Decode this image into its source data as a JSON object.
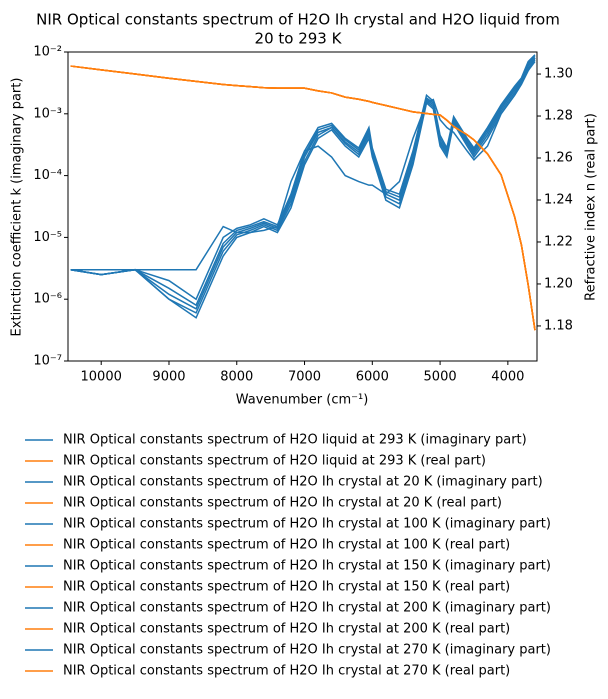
{
  "chart_data": {
    "type": "line",
    "title": "NIR Optical constants spectrum of H2O Ih crystal and  H2O liquid from",
    "subtitle": "20 to 293 K",
    "x_label": "Wavenumber (cm⁻¹)",
    "y_label": "Extinction coefficient k (imaginary part)",
    "y2_label": "Refractive index n (real part)",
    "xlim": [
      10490,
      3570
    ],
    "xticks": [
      10000,
      9000,
      8000,
      7000,
      6000,
      5000,
      4000
    ],
    "ylim": [
      1e-07,
      0.01
    ],
    "yscale": "log",
    "yticks": [
      {
        "value": 1e-07,
        "label": "10⁻⁷"
      },
      {
        "value": 1e-06,
        "label": "10⁻⁶"
      },
      {
        "value": 1e-05,
        "label": "10⁻⁵"
      },
      {
        "value": 0.0001,
        "label": "10⁻⁴"
      },
      {
        "value": 0.001,
        "label": "10⁻³"
      },
      {
        "value": 0.01,
        "label": "10⁻²"
      }
    ],
    "y2lim": [
      1.1633,
      1.3105
    ],
    "y2ticks": [
      {
        "value": 1.18,
        "label": "1.18"
      },
      {
        "value": 1.2,
        "label": "1.20"
      },
      {
        "value": 1.22,
        "label": "1.22"
      },
      {
        "value": 1.24,
        "label": "1.24"
      },
      {
        "value": 1.26,
        "label": "1.26"
      },
      {
        "value": 1.28,
        "label": "1.28"
      },
      {
        "value": 1.3,
        "label": "1.30"
      }
    ],
    "legend": "below",
    "x": [
      10450,
      10000,
      9500,
      9000,
      8600,
      8200,
      8000,
      7800,
      7600,
      7400,
      7200,
      7000,
      6800,
      6600,
      6400,
      6200,
      6050,
      6000,
      5800,
      5600,
      5400,
      5200,
      5100,
      5000,
      4900,
      4800,
      4600,
      4500,
      4300,
      4100,
      3900,
      3800,
      3700,
      3600
    ],
    "series": [
      {
        "name": "NIR Optical constants spectrum of H2O liquid at 293 K (imaginary part)",
        "color": "#1f77b4",
        "values": [
          3e-06,
          3e-06,
          3e-06,
          3e-06,
          3e-06,
          1.5e-05,
          1.2e-05,
          1.2e-05,
          1.3e-05,
          1.5e-05,
          8e-05,
          0.00025,
          0.0003,
          0.0002,
          0.0001,
          8e-05,
          7e-05,
          7e-05,
          5e-05,
          8e-05,
          0.0004,
          0.0015,
          0.0017,
          0.0008,
          0.0006,
          0.0005,
          0.00025,
          0.00018,
          0.0003,
          0.001,
          0.002,
          0.003,
          0.005,
          0.008
        ]
      },
      {
        "name": "NIR Optical constants spectrum of H2O liquid at 293 K (real part)",
        "color": "#ff7f0e",
        "axis": "y2",
        "values": [
          1.3038,
          1.302,
          1.3,
          1.298,
          1.2965,
          1.295,
          1.2945,
          1.294,
          1.2935,
          1.2933,
          1.2933,
          1.2933,
          1.292,
          1.291,
          1.289,
          1.288,
          1.287,
          1.2865,
          1.285,
          1.2835,
          1.282,
          1.2812,
          1.2808,
          1.2805,
          1.278,
          1.275,
          1.271,
          1.2686,
          1.262,
          1.252,
          1.232,
          1.2186,
          1.1995,
          1.178
        ]
      },
      {
        "name": "NIR Optical constants spectrum of H2O Ih crystal at 20 K (imaginary part)",
        "color": "#1f77b4",
        "values": [
          3e-06,
          2.5e-06,
          3e-06,
          1e-06,
          5e-07,
          5e-06,
          1e-05,
          1.2e-05,
          1.5e-05,
          1.2e-05,
          3e-05,
          0.00015,
          0.0004,
          0.00055,
          0.0003,
          0.0002,
          0.0004,
          0.0002,
          4e-05,
          3e-05,
          0.00015,
          0.0015,
          0.0012,
          0.0003,
          0.0002,
          0.0007,
          0.0003,
          0.0002,
          0.0004,
          0.001,
          0.002,
          0.003,
          0.005,
          0.007
        ]
      },
      {
        "name": "NIR Optical constants spectrum of H2O Ih crystal at 20 K (real part)",
        "color": "#ff7f0e",
        "axis": "y2",
        "values": [
          1.3038,
          1.302,
          1.3,
          1.298,
          1.2965,
          1.295,
          1.2945,
          1.294,
          1.2935,
          1.2933,
          1.2933,
          1.2933,
          1.292,
          1.291,
          1.289,
          1.288,
          1.287,
          1.2865,
          1.285,
          1.2835,
          1.282,
          1.2812,
          1.2808,
          1.2805,
          1.278,
          1.275,
          1.271,
          1.2686,
          1.262,
          1.252,
          1.232,
          1.2186,
          1.1995,
          1.178
        ]
      },
      {
        "name": "NIR Optical constants spectrum of H2O Ih crystal at 100 K (imaginary part)",
        "color": "#1f77b4",
        "values": [
          3e-06,
          2.5e-06,
          3e-06,
          1e-06,
          6e-07,
          6e-06,
          1.1e-05,
          1.3e-05,
          1.6e-05,
          1.3e-05,
          3.5e-05,
          0.00017,
          0.00045,
          0.0006,
          0.00033,
          0.00022,
          0.00045,
          0.00022,
          4.5e-05,
          3.5e-05,
          0.00017,
          0.0016,
          0.0013,
          0.00033,
          0.00022,
          0.00075,
          0.00033,
          0.00022,
          0.00045,
          0.0011,
          0.0022,
          0.0032,
          0.0055,
          0.0075
        ]
      },
      {
        "name": "NIR Optical constants spectrum of H2O Ih crystal at 100 K (real part)",
        "color": "#ff7f0e",
        "axis": "y2",
        "values": [
          1.3038,
          1.302,
          1.3,
          1.298,
          1.2965,
          1.295,
          1.2945,
          1.294,
          1.2935,
          1.2933,
          1.2933,
          1.2933,
          1.292,
          1.291,
          1.289,
          1.288,
          1.287,
          1.2865,
          1.285,
          1.2835,
          1.282,
          1.2812,
          1.2808,
          1.2805,
          1.278,
          1.275,
          1.271,
          1.2686,
          1.262,
          1.252,
          1.232,
          1.2186,
          1.1995,
          1.178
        ]
      },
      {
        "name": "NIR Optical constants spectrum of H2O Ih crystal at 150 K (imaginary part)",
        "color": "#1f77b4",
        "values": [
          3e-06,
          2.5e-06,
          3e-06,
          1.2e-06,
          7e-07,
          7e-06,
          1.2e-05,
          1.4e-05,
          1.7e-05,
          1.4e-05,
          4e-05,
          0.0002,
          0.0005,
          0.0006,
          0.00035,
          0.00024,
          0.0005,
          0.00024,
          5e-05,
          4e-05,
          0.0002,
          0.0017,
          0.0014,
          0.00036,
          0.00024,
          0.0008,
          0.00035,
          0.00024,
          0.0005,
          0.0012,
          0.0024,
          0.0034,
          0.006,
          0.008
        ]
      },
      {
        "name": "NIR Optical constants spectrum of H2O Ih crystal at 150 K (real part)",
        "color": "#ff7f0e",
        "axis": "y2",
        "values": [
          1.3038,
          1.302,
          1.3,
          1.298,
          1.2965,
          1.295,
          1.2945,
          1.294,
          1.2935,
          1.2933,
          1.2933,
          1.2933,
          1.292,
          1.291,
          1.289,
          1.288,
          1.287,
          1.2865,
          1.285,
          1.2835,
          1.282,
          1.2812,
          1.2808,
          1.2805,
          1.278,
          1.275,
          1.271,
          1.2686,
          1.262,
          1.252,
          1.232,
          1.2186,
          1.1995,
          1.178
        ]
      },
      {
        "name": "NIR Optical constants spectrum of H2O Ih crystal at 200 K (imaginary part)",
        "color": "#1f77b4",
        "values": [
          3e-06,
          2.5e-06,
          3e-06,
          1.5e-06,
          8e-07,
          8e-06,
          1.3e-05,
          1.5e-05,
          1.8e-05,
          1.5e-05,
          4.5e-05,
          0.00022,
          0.00055,
          0.00065,
          0.00038,
          0.00026,
          0.00055,
          0.00026,
          5.5e-05,
          4.5e-05,
          0.00022,
          0.0018,
          0.0015,
          0.0004,
          0.00026,
          0.00085,
          0.00038,
          0.00026,
          0.00055,
          0.0013,
          0.0026,
          0.0036,
          0.0065,
          0.0085
        ]
      },
      {
        "name": "NIR Optical constants spectrum of H2O Ih crystal at 200 K (real part)",
        "color": "#ff7f0e",
        "axis": "y2",
        "values": [
          1.3038,
          1.302,
          1.3,
          1.298,
          1.2965,
          1.295,
          1.2945,
          1.294,
          1.2935,
          1.2933,
          1.2933,
          1.2933,
          1.292,
          1.291,
          1.289,
          1.288,
          1.287,
          1.2865,
          1.285,
          1.2835,
          1.282,
          1.2812,
          1.2808,
          1.2805,
          1.278,
          1.275,
          1.271,
          1.2686,
          1.262,
          1.252,
          1.232,
          1.2186,
          1.1995,
          1.178
        ]
      },
      {
        "name": "NIR Optical constants spectrum of H2O Ih crystal at 270 K (imaginary part)",
        "color": "#1f77b4",
        "values": [
          3e-06,
          2.5e-06,
          3e-06,
          2e-06,
          1e-06,
          1e-05,
          1.4e-05,
          1.6e-05,
          2e-05,
          1.6e-05,
          5e-05,
          0.00025,
          0.0006,
          0.0007,
          0.0004,
          0.00028,
          0.0006,
          0.00028,
          6e-05,
          5e-05,
          0.00025,
          0.002,
          0.0016,
          0.00045,
          0.00028,
          0.0009,
          0.0004,
          0.00028,
          0.0006,
          0.0014,
          0.0028,
          0.0038,
          0.007,
          0.009
        ]
      },
      {
        "name": "NIR Optical constants spectrum of H2O Ih crystal at 270 K (real part)",
        "color": "#ff7f0e",
        "axis": "y2",
        "values": [
          1.3038,
          1.302,
          1.3,
          1.298,
          1.2965,
          1.295,
          1.2945,
          1.294,
          1.2935,
          1.2933,
          1.2933,
          1.2933,
          1.292,
          1.291,
          1.289,
          1.288,
          1.287,
          1.2865,
          1.285,
          1.2835,
          1.282,
          1.2812,
          1.2808,
          1.2805,
          1.278,
          1.275,
          1.271,
          1.2686,
          1.262,
          1.252,
          1.232,
          1.2186,
          1.1995,
          1.178
        ]
      }
    ]
  }
}
